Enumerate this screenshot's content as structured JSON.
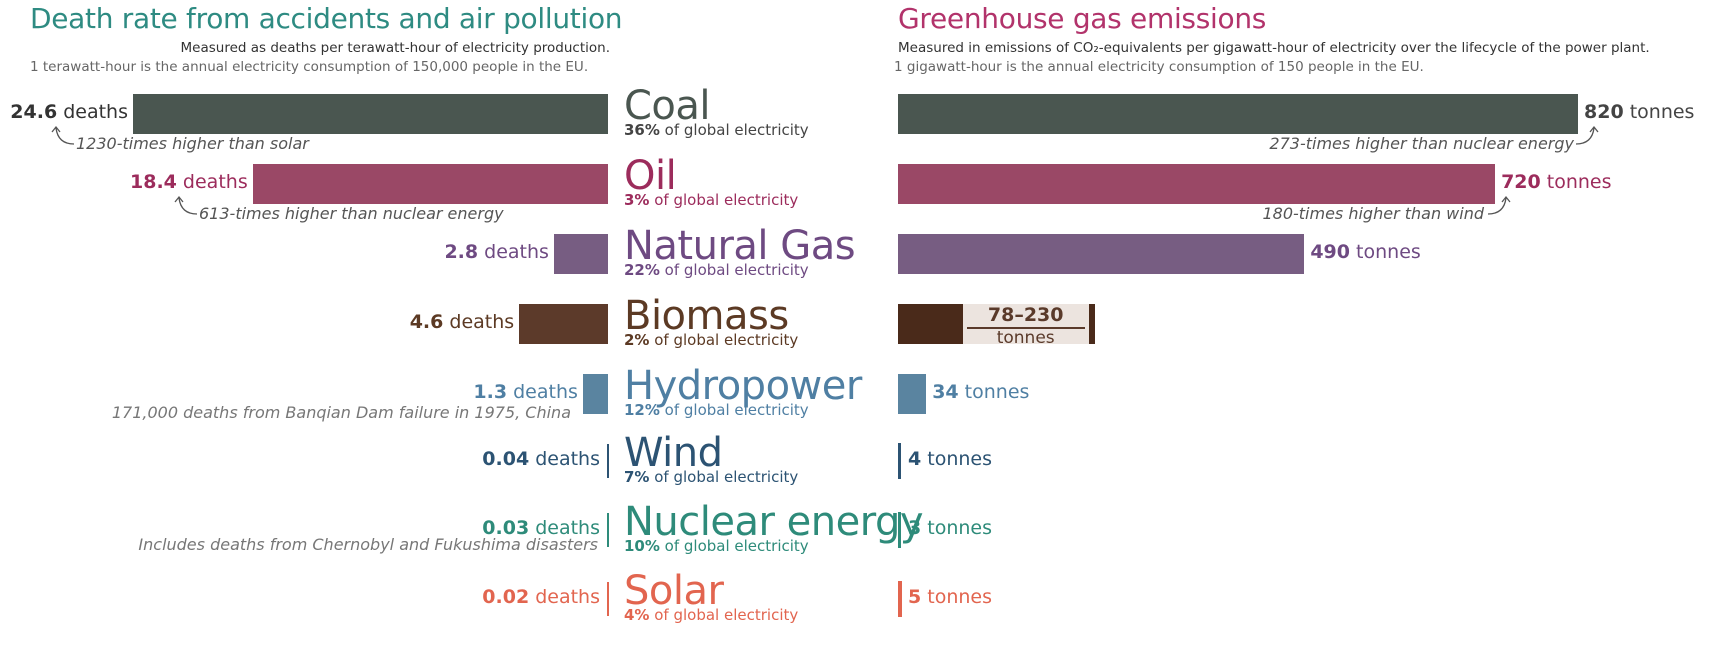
{
  "left_panel": {
    "title": "Death rate from accidents and air pollution",
    "subtitle": "Measured as deaths per terawatt-hour of electricity production.",
    "note": "1 terawatt-hour is the annual electricity consumption of 150,000 people in the EU.",
    "unit": "deaths"
  },
  "right_panel": {
    "title": "Greenhouse gas emissions",
    "subtitle": "Measured in emissions of CO₂-equivalents per gigawatt-hour of electricity over the lifecycle of the power plant.",
    "note": "1 gigawatt-hour is the annual electricity consumption of 150 people in the EU.",
    "unit": "tonnes"
  },
  "share_suffix": "of global electricity",
  "annotations": {
    "coal_left": "1230-times higher than solar",
    "oil_left": "613-times higher than nuclear energy",
    "hydro_left": "171,000 deaths from Banqian Dam failure in 1975, China",
    "nuclear_left": "Includes deaths from Chernobyl and Fukushima disasters",
    "coal_right": "273-times higher than nuclear energy",
    "oil_right": "180-times higher than wind",
    "biomass_range": "78–230",
    "biomass_unit": "tonnes"
  },
  "sources": [
    {
      "name": "Coal",
      "share": "36%",
      "deaths": "24.6",
      "emissions": "820",
      "color": "#4a5650",
      "fill": "#4a5650",
      "name_size": 40
    },
    {
      "name": "Oil",
      "share": "3%",
      "deaths": "18.4",
      "emissions": "720",
      "color": "#9c2c5c",
      "fill": "#9a4866",
      "name_size": 40
    },
    {
      "name": "Natural Gas",
      "share": "22%",
      "deaths": "2.8",
      "emissions": "490",
      "color": "#6e4a82",
      "fill": "#775d82",
      "name_size": 40
    },
    {
      "name": "Biomass",
      "share": "2%",
      "deaths": "4.6",
      "emissions": "78–230",
      "color": "#5c3a24",
      "fill": "#5c3a2a",
      "name_size": 40
    },
    {
      "name": "Hydropower",
      "share": "12%",
      "deaths": "1.3",
      "emissions": "34",
      "color": "#4f7fa3",
      "fill": "#5a84a0",
      "name_size": 40
    },
    {
      "name": "Wind",
      "share": "7%",
      "deaths": "0.04",
      "emissions": "4",
      "color": "#2c5373",
      "fill": "#2c5373",
      "name_size": 40
    },
    {
      "name": "Nuclear energy",
      "share": "10%",
      "deaths": "0.03",
      "emissions": "3",
      "color": "#2e8b7a",
      "fill": "#2e8b7a",
      "name_size": 40
    },
    {
      "name": "Solar",
      "share": "4%",
      "deaths": "0.02",
      "emissions": "5",
      "color": "#e2654f",
      "fill": "#e2654f",
      "name_size": 40
    }
  ],
  "chart_data": [
    {
      "type": "bar",
      "orientation": "horizontal",
      "title": "Death rate from accidents and air pollution",
      "xlabel": "deaths",
      "categories": [
        "Coal",
        "Oil",
        "Natural Gas",
        "Biomass",
        "Hydropower",
        "Wind",
        "Nuclear energy",
        "Solar"
      ],
      "values": [
        24.6,
        18.4,
        2.8,
        4.6,
        1.3,
        0.04,
        0.03,
        0.02
      ]
    },
    {
      "type": "bar",
      "orientation": "horizontal",
      "title": "Greenhouse gas emissions",
      "xlabel": "tonnes",
      "categories": [
        "Coal",
        "Oil",
        "Natural Gas",
        "Biomass",
        "Hydropower",
        "Wind",
        "Nuclear energy",
        "Solar"
      ],
      "values": [
        820,
        720,
        490,
        78,
        34,
        4,
        3,
        5
      ],
      "ranges": {
        "Biomass": [
          78,
          230
        ]
      }
    }
  ]
}
